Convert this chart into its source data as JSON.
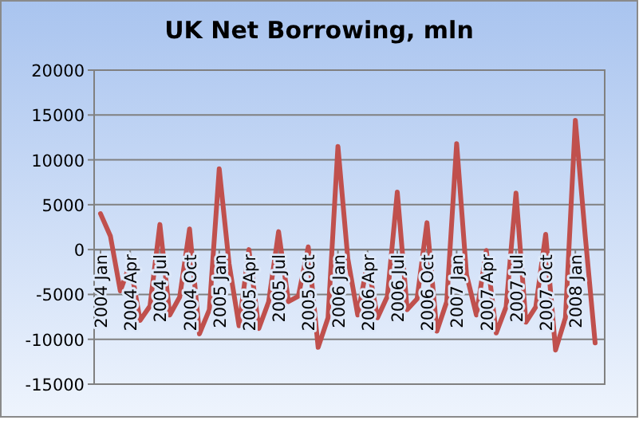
{
  "chart_data": {
    "type": "line",
    "title": "UK Net Borrowing, mln",
    "categories": [
      "2004 Jan",
      null,
      null,
      "2004 Apr",
      null,
      null,
      "2004 Jul",
      null,
      null,
      "2004 Oct",
      null,
      null,
      "2005 Jan",
      null,
      null,
      "2005 Apr",
      null,
      null,
      "2005 Jul",
      null,
      null,
      "2005 Oct",
      null,
      null,
      "2006 Jan",
      null,
      null,
      "2006 Apr",
      null,
      null,
      "2006 Jul",
      null,
      null,
      "2006 Oct",
      null,
      null,
      "2007 Jan",
      null,
      null,
      "2007 Apr",
      null,
      null,
      "2007 Jul",
      null,
      null,
      "2007 Oct",
      null,
      null,
      "2008 Jan",
      null,
      null
    ],
    "series": [
      {
        "color": "#c0504d",
        "values": [
          4000,
          1500,
          -4600,
          -1600,
          -7900,
          -6300,
          2800,
          -7300,
          -5300,
          2300,
          -9400,
          -6700,
          9000,
          -1600,
          -8500,
          0,
          -8800,
          -5800,
          2000,
          -5800,
          -5200,
          300,
          -10900,
          -7600,
          11500,
          -1000,
          -7300,
          -1400,
          -7600,
          -5200,
          6400,
          -6700,
          -5500,
          3000,
          -9100,
          -5800,
          11800,
          -2800,
          -7300,
          -100,
          -9300,
          -6400,
          6300,
          -8100,
          -6400,
          1700,
          -11200,
          -7600,
          14400,
          1500,
          -10400
        ]
      }
    ],
    "ylim": [
      -15000,
      20000
    ],
    "yticks": [
      -15000,
      -10000,
      -5000,
      0,
      5000,
      10000,
      15000,
      20000
    ],
    "grid": "y",
    "marker": "none",
    "line_style": "solid"
  }
}
